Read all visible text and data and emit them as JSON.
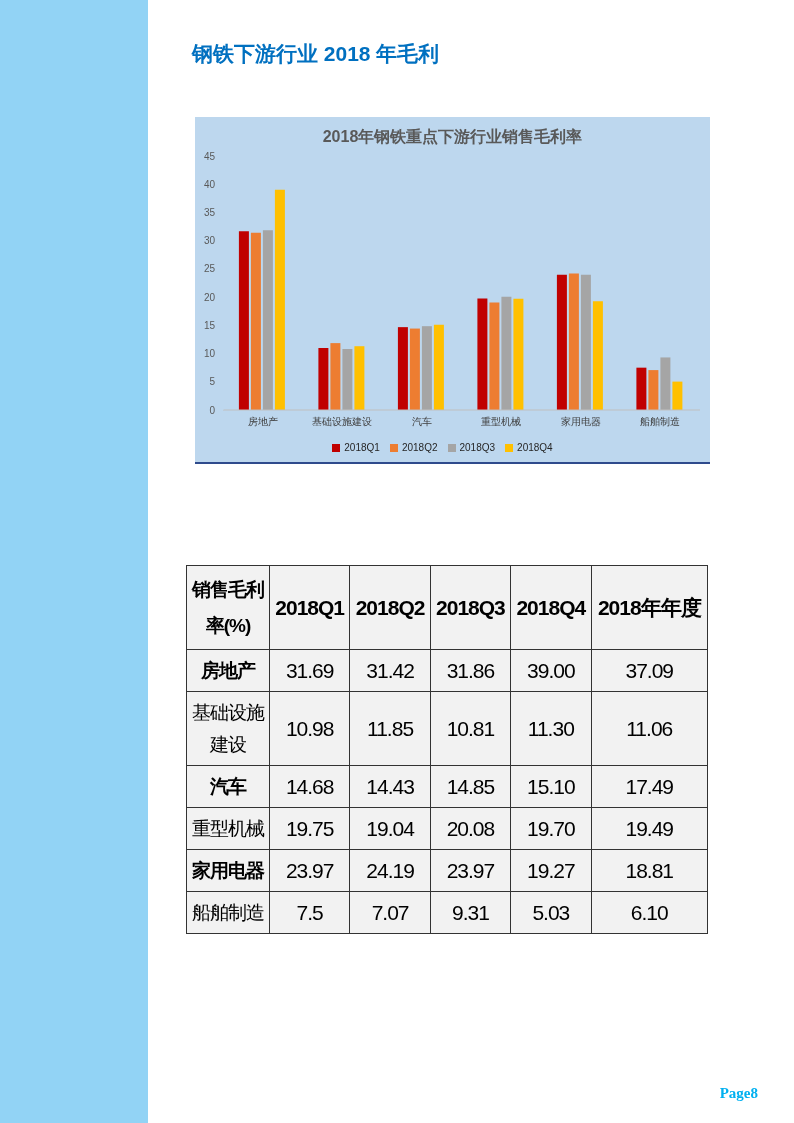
{
  "chart_data": [
    {
      "type": "bar",
      "title": "2018年钢铁重点下游行业销售毛利率",
      "annotations": [
        "钢铁下游行业 2018 年毛利",
        "Page8"
      ],
      "categories": [
        "房地产",
        "基础设施建设",
        "汽车",
        "重型机械",
        "家用电器",
        "船舶制造"
      ],
      "series": [
        {
          "name": "2018Q1",
          "color": "#c00000",
          "values": [
            31.69,
            10.98,
            14.68,
            19.75,
            23.97,
            7.5
          ],
          "value_labels": [
            "31.69",
            "10.98",
            "14.68",
            "19.75",
            "23.97",
            "7.5"
          ]
        },
        {
          "name": "2018Q2",
          "color": "#ed7d31",
          "values": [
            31.42,
            11.85,
            14.43,
            19.04,
            24.19,
            7.07
          ],
          "value_labels": [
            "31.42",
            "11.85",
            "14.43",
            "19.04",
            "24.19",
            "7.07"
          ]
        },
        {
          "name": "2018Q3",
          "color": "#a5a5a5",
          "values": [
            31.86,
            10.81,
            14.85,
            20.08,
            23.97,
            9.31
          ],
          "value_labels": [
            "31.86",
            "10.81",
            "14.85",
            "20.08",
            "23.97",
            "9.31"
          ]
        },
        {
          "name": "2018Q4",
          "color": "#ffc000",
          "values": [
            39.0,
            11.3,
            15.1,
            19.7,
            19.27,
            5.03
          ],
          "value_labels": [
            "39.00",
            "11.30",
            "15.10",
            "19.70",
            "19.27",
            "5.03"
          ]
        }
      ],
      "ylim": [
        0,
        45
      ],
      "yticks": [
        0,
        5,
        10,
        15,
        20,
        25,
        30,
        35,
        40,
        45
      ],
      "legend": "bottom"
    },
    {
      "type": "other",
      "title": "销售毛利率(%)",
      "categories": [
        "房地产",
        "基础设施建设",
        "汽车",
        "重型机械",
        "家用电器",
        "船舶制造"
      ],
      "series": [
        {
          "name": "2018年年度",
          "values": [
            37.09,
            11.06,
            17.49,
            19.49,
            18.81,
            6.1
          ],
          "value_labels": [
            "37.09",
            "11.06",
            "17.49",
            "19.49",
            "18.81",
            "6.10"
          ]
        }
      ]
    }
  ]
}
